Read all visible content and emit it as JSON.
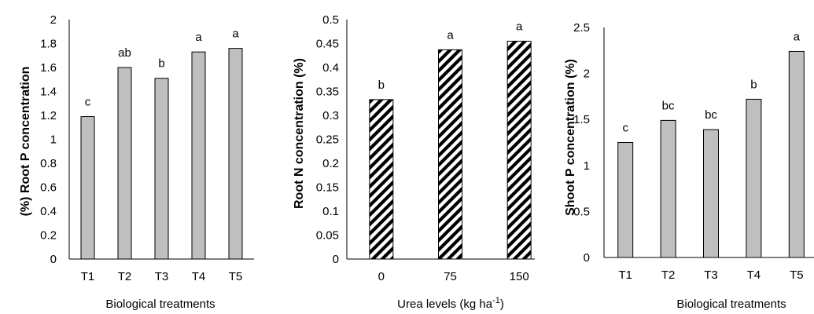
{
  "chart_data": [
    {
      "type": "bar",
      "categories": [
        "T1",
        "T2",
        "T3",
        "T4",
        "T5"
      ],
      "values": [
        1.19,
        1.6,
        1.51,
        1.73,
        1.76
      ],
      "labels": [
        "c",
        "ab",
        "b",
        "a",
        "a"
      ],
      "ylabel": "(%) Root P concentration",
      "xlabel": "Biological treatments",
      "ylim": [
        0,
        2
      ],
      "yticks": [
        "0",
        "0.2",
        "0.4",
        "0.6",
        "0.8",
        "1",
        "1.2",
        "1.4",
        "1.6",
        "1.8",
        "2"
      ],
      "bar_fill": "#bfbfbf",
      "bar_pattern": "solid",
      "grid": false
    },
    {
      "type": "bar",
      "categories": [
        "0",
        "75",
        "150"
      ],
      "values": [
        0.333,
        0.437,
        0.455
      ],
      "labels": [
        "b",
        "a",
        "a"
      ],
      "ylabel": "Root N concentration (%)",
      "xlabel_main": "Urea levels (kg ha",
      "xlabel_sup": "-1",
      "xlabel_end": ")",
      "ylim": [
        0,
        0.5
      ],
      "yticks": [
        "0",
        "0.05",
        "0.1",
        "0.15",
        "0.2",
        "0.25",
        "0.3",
        "0.35",
        "0.4",
        "0.45",
        "0.5"
      ],
      "bar_fill": "#ffffff",
      "bar_pattern": "diagonal-hatch",
      "grid": false
    },
    {
      "type": "bar",
      "categories": [
        "T1",
        "T2",
        "T3",
        "T4",
        "T5"
      ],
      "values": [
        1.25,
        1.49,
        1.39,
        1.72,
        2.24
      ],
      "labels": [
        "c",
        "bc",
        "bc",
        "b",
        "a"
      ],
      "ylabel": "Shoot P concentration (%)",
      "xlabel": "Biological treatments",
      "ylim": [
        0,
        2.5
      ],
      "yticks": [
        "0",
        "0.5",
        "1",
        "1.5",
        "2",
        "2.5"
      ],
      "bar_fill": "#bfbfbf",
      "bar_pattern": "solid",
      "grid": false
    }
  ]
}
